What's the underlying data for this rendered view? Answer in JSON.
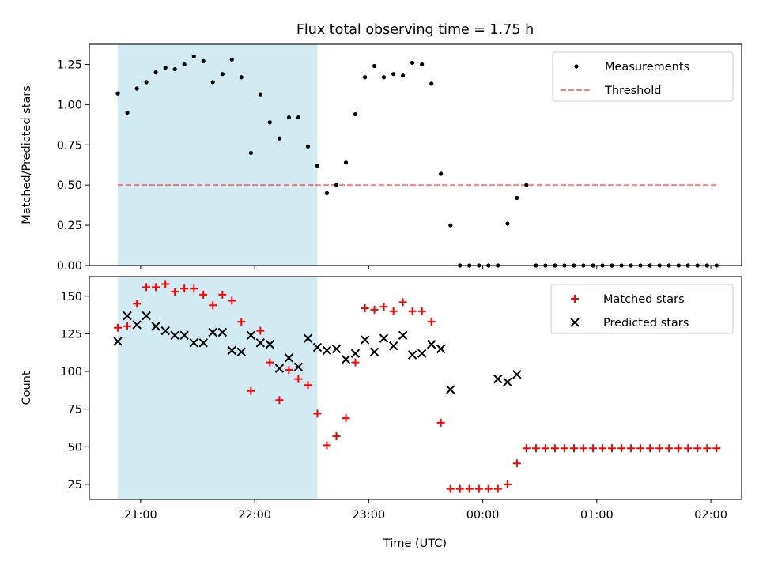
{
  "title": "Flux total observing time = 1.75 h",
  "colors": {
    "shade": "#add8e6",
    "threshold": "#ff0000",
    "matched": "#ff0000",
    "predicted": "#000000",
    "measurements": "#000000"
  },
  "chart_data": [
    {
      "type": "scatter",
      "ylabel": "Matched/Predicted stars",
      "xlim_hours": [
        20.55,
        26.27
      ],
      "ylim": [
        0,
        1.375
      ],
      "yticks": [
        0.0,
        0.25,
        0.5,
        0.75,
        1.0,
        1.25
      ],
      "ytick_labels": [
        "0.00",
        "0.25",
        "0.50",
        "0.75",
        "1.00",
        "1.25"
      ],
      "shaded_span_hours": [
        20.8,
        22.55
      ],
      "threshold": 0.5,
      "threshold_x_hours": [
        20.8,
        26.05
      ],
      "legend": {
        "placement": "upper right",
        "entries": [
          "Measurements",
          "Threshold"
        ]
      },
      "series": [
        {
          "name": "Measurements",
          "marker": "dot",
          "x_hours": [
            20.8,
            20.883,
            20.967,
            21.05,
            21.133,
            21.217,
            21.3,
            21.383,
            21.467,
            21.55,
            21.633,
            21.717,
            21.8,
            21.883,
            21.967,
            22.05,
            22.133,
            22.217,
            22.3,
            22.383,
            22.467,
            22.55,
            22.633,
            22.717,
            22.8,
            22.883,
            22.967,
            23.05,
            23.133,
            23.217,
            23.3,
            23.383,
            23.467,
            23.55,
            23.633,
            23.717,
            23.8,
            23.883,
            23.967,
            24.05,
            24.133,
            24.217,
            24.3,
            24.383,
            24.467,
            24.55,
            24.633,
            24.717,
            24.8,
            24.883,
            24.967,
            25.05,
            25.133,
            25.217,
            25.3,
            25.383,
            25.467,
            25.55,
            25.633,
            25.717,
            25.8,
            25.883,
            25.967,
            26.05
          ],
          "y": [
            1.07,
            0.95,
            1.1,
            1.14,
            1.2,
            1.23,
            1.22,
            1.25,
            1.3,
            1.27,
            1.14,
            1.19,
            1.28,
            1.17,
            0.7,
            1.06,
            0.89,
            0.79,
            0.92,
            0.92,
            0.74,
            0.62,
            0.45,
            0.5,
            0.64,
            0.94,
            1.17,
            1.24,
            1.17,
            1.19,
            1.18,
            1.26,
            1.25,
            1.13,
            0.57,
            0.25,
            0.0,
            0.0,
            0.0,
            0.0,
            0.0,
            0.26,
            0.42,
            0.5,
            0.0,
            0.0,
            0.0,
            0.0,
            0.0,
            0.0,
            0.0,
            0.0,
            0.0,
            0.0,
            0.0,
            0.0,
            0.0,
            0.0,
            0.0,
            0.0,
            0.0,
            0.0,
            0.0,
            0.0
          ]
        },
        {
          "name": "Threshold",
          "style": "dashed"
        }
      ]
    },
    {
      "type": "scatter",
      "xlabel": "Time (UTC)",
      "ylabel": "Count",
      "xlim_hours": [
        20.55,
        26.27
      ],
      "ylim": [
        15,
        163
      ],
      "yticks": [
        25,
        50,
        75,
        100,
        125,
        150
      ],
      "ytick_labels": [
        "25",
        "50",
        "75",
        "100",
        "125",
        "150"
      ],
      "xticks_hours": [
        21,
        22,
        23,
        24,
        25,
        26
      ],
      "xtick_labels": [
        "21:00",
        "22:00",
        "23:00",
        "00:00",
        "01:00",
        "02:00"
      ],
      "shaded_span_hours": [
        20.8,
        22.55
      ],
      "legend": {
        "placement": "upper right",
        "entries": [
          "Matched stars",
          "Predicted stars"
        ]
      },
      "series": [
        {
          "name": "Matched stars",
          "marker": "plus",
          "x_hours": [
            20.8,
            20.883,
            20.967,
            21.05,
            21.133,
            21.217,
            21.3,
            21.383,
            21.467,
            21.55,
            21.633,
            21.717,
            21.8,
            21.883,
            21.967,
            22.05,
            22.133,
            22.217,
            22.3,
            22.383,
            22.467,
            22.55,
            22.633,
            22.717,
            22.8,
            22.883,
            22.967,
            23.05,
            23.133,
            23.217,
            23.3,
            23.383,
            23.467,
            23.55,
            23.633,
            23.717,
            23.8,
            23.883,
            23.967,
            24.05,
            24.133,
            24.217,
            24.3,
            24.383,
            24.467,
            24.55,
            24.633,
            24.717,
            24.8,
            24.883,
            24.967,
            25.05,
            25.133,
            25.217,
            25.3,
            25.383,
            25.467,
            25.55,
            25.633,
            25.717,
            25.8,
            25.883,
            25.967,
            26.05
          ],
          "y": [
            129,
            130,
            145,
            156,
            156,
            158,
            153,
            155,
            155,
            151,
            144,
            151,
            147,
            133,
            87,
            127,
            106,
            81,
            101,
            95,
            91,
            72,
            51,
            57,
            69,
            106,
            142,
            141,
            143,
            140,
            146,
            140,
            140,
            133,
            66,
            22,
            22,
            22,
            22,
            22,
            22,
            25,
            39,
            49,
            49,
            49,
            49,
            49,
            49,
            49,
            49,
            49,
            49,
            49,
            49,
            49,
            49,
            49,
            49,
            49,
            49,
            49,
            49,
            49
          ]
        },
        {
          "name": "Predicted stars",
          "marker": "x",
          "x_hours": [
            20.8,
            20.883,
            20.967,
            21.05,
            21.133,
            21.217,
            21.3,
            21.383,
            21.467,
            21.55,
            21.633,
            21.717,
            21.8,
            21.883,
            21.967,
            22.05,
            22.133,
            22.217,
            22.3,
            22.383,
            22.467,
            22.55,
            22.633,
            22.717,
            22.8,
            22.883,
            22.967,
            23.05,
            23.133,
            23.217,
            23.3,
            23.383,
            23.467,
            23.55,
            23.633,
            23.717,
            24.133,
            24.217,
            24.3
          ],
          "y": [
            120,
            137,
            131,
            137,
            130,
            127,
            124,
            124,
            119,
            119,
            126,
            126,
            114,
            113,
            124,
            119,
            118,
            102,
            109,
            103,
            122,
            116,
            114,
            115,
            108,
            112,
            121,
            113,
            122,
            117,
            124,
            111,
            112,
            118,
            115,
            88,
            95,
            93,
            98
          ]
        }
      ]
    }
  ]
}
